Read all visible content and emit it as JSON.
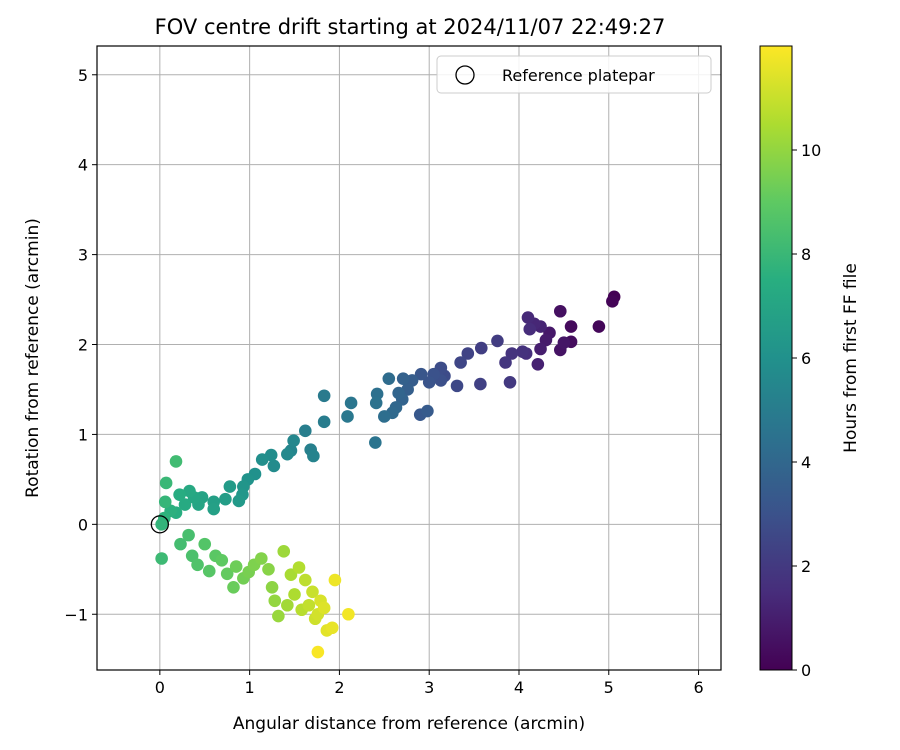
{
  "chart_data": {
    "type": "scatter",
    "title": "FOV centre drift starting at 2024/11/07 22:49:27",
    "xlabel": "Angular distance from reference (arcmin)",
    "ylabel": "Rotation from reference (arcmin)",
    "xlim": [
      -0.7,
      6.25
    ],
    "ylim": [
      -1.62,
      5.32
    ],
    "xticks": [
      "0",
      "1",
      "2",
      "3",
      "4",
      "5",
      "6"
    ],
    "yticks": [
      "−1",
      "0",
      "1",
      "2",
      "3",
      "4",
      "5"
    ],
    "grid": true,
    "legend": {
      "placement": "top-right",
      "entries": [
        {
          "label": "Reference platepar",
          "marker": "open-circle",
          "x": 0,
          "y": 0
        }
      ]
    },
    "colorbar": {
      "label": "Hours from first FF file",
      "range": [
        0,
        12
      ],
      "ticks": [
        "0",
        "2",
        "4",
        "6",
        "8",
        "10"
      ],
      "colormap": "viridis"
    },
    "points": [
      [
        5.06,
        2.53,
        0.0
      ],
      [
        5.04,
        2.48,
        0.1
      ],
      [
        4.89,
        2.2,
        0.2
      ],
      [
        4.58,
        2.2,
        0.3
      ],
      [
        4.58,
        2.03,
        0.4
      ],
      [
        4.46,
        2.37,
        0.5
      ],
      [
        4.46,
        1.94,
        0.6
      ],
      [
        4.5,
        2.02,
        0.7
      ],
      [
        4.34,
        2.13,
        0.8
      ],
      [
        4.3,
        2.05,
        0.9
      ],
      [
        4.24,
        1.95,
        1.0
      ],
      [
        4.21,
        1.78,
        1.1
      ],
      [
        4.24,
        2.2,
        1.2
      ],
      [
        4.17,
        2.23,
        1.3
      ],
      [
        4.1,
        2.3,
        1.4
      ],
      [
        4.12,
        2.17,
        1.5
      ],
      [
        4.08,
        1.9,
        1.6
      ],
      [
        4.04,
        1.92,
        1.7
      ],
      [
        3.92,
        1.9,
        1.8
      ],
      [
        3.85,
        1.8,
        1.9
      ],
      [
        3.9,
        1.58,
        2.0
      ],
      [
        3.76,
        2.04,
        2.1
      ],
      [
        3.58,
        1.96,
        2.2
      ],
      [
        3.57,
        1.56,
        2.3
      ],
      [
        3.43,
        1.9,
        2.4
      ],
      [
        3.35,
        1.8,
        2.5
      ],
      [
        3.31,
        1.54,
        2.6
      ],
      [
        3.17,
        1.65,
        2.7
      ],
      [
        3.13,
        1.74,
        2.8
      ],
      [
        3.13,
        1.6,
        2.9
      ],
      [
        3.05,
        1.67,
        3.0
      ],
      [
        3.0,
        1.58,
        3.1
      ],
      [
        2.91,
        1.67,
        3.2
      ],
      [
        2.9,
        1.22,
        3.3
      ],
      [
        2.98,
        1.26,
        3.4
      ],
      [
        2.81,
        1.6,
        3.5
      ],
      [
        2.76,
        1.5,
        3.6
      ],
      [
        2.71,
        1.62,
        3.7
      ],
      [
        2.7,
        1.39,
        3.8
      ],
      [
        2.66,
        1.46,
        3.9
      ],
      [
        2.63,
        1.3,
        4.0
      ],
      [
        2.59,
        1.24,
        4.1
      ],
      [
        2.55,
        1.62,
        4.2
      ],
      [
        2.5,
        1.2,
        4.3
      ],
      [
        2.42,
        1.45,
        4.4
      ],
      [
        2.41,
        1.35,
        4.5
      ],
      [
        2.4,
        0.91,
        4.6
      ],
      [
        2.13,
        1.35,
        4.7
      ],
      [
        2.09,
        1.2,
        4.8
      ],
      [
        1.83,
        1.43,
        4.9
      ],
      [
        1.83,
        1.14,
        5.0
      ],
      [
        1.62,
        1.04,
        5.1
      ],
      [
        1.68,
        0.83,
        5.2
      ],
      [
        1.71,
        0.76,
        5.3
      ],
      [
        1.46,
        0.82,
        5.4
      ],
      [
        1.49,
        0.93,
        5.5
      ],
      [
        1.42,
        0.78,
        5.6
      ],
      [
        1.27,
        0.65,
        5.7
      ],
      [
        1.24,
        0.77,
        5.8
      ],
      [
        1.14,
        0.72,
        5.9
      ],
      [
        1.06,
        0.56,
        6.0
      ],
      [
        0.98,
        0.5,
        6.1
      ],
      [
        0.93,
        0.42,
        6.2
      ],
      [
        0.92,
        0.33,
        6.3
      ],
      [
        0.88,
        0.26,
        6.4
      ],
      [
        0.78,
        0.42,
        6.5
      ],
      [
        0.73,
        0.28,
        6.6
      ],
      [
        0.6,
        0.25,
        6.7
      ],
      [
        0.6,
        0.17,
        6.8
      ],
      [
        0.47,
        0.3,
        6.9
      ],
      [
        0.43,
        0.22,
        7.0
      ],
      [
        0.38,
        0.3,
        7.1
      ],
      [
        0.33,
        0.37,
        7.2
      ],
      [
        0.28,
        0.22,
        7.3
      ],
      [
        0.22,
        0.33,
        7.4
      ],
      [
        0.18,
        0.13,
        7.5
      ],
      [
        0.12,
        0.15,
        7.6
      ],
      [
        0.05,
        0.07,
        7.7
      ],
      [
        0.02,
        0.0,
        7.8
      ],
      [
        0.06,
        0.25,
        7.9
      ],
      [
        0.07,
        0.46,
        8.0
      ],
      [
        0.02,
        -0.38,
        8.1
      ],
      [
        0.18,
        0.7,
        8.2
      ],
      [
        0.23,
        -0.22,
        8.3
      ],
      [
        0.32,
        -0.12,
        8.4
      ],
      [
        0.36,
        -0.35,
        8.5
      ],
      [
        0.42,
        -0.45,
        8.6
      ],
      [
        0.5,
        -0.22,
        8.7
      ],
      [
        0.55,
        -0.52,
        8.8
      ],
      [
        0.62,
        -0.35,
        8.9
      ],
      [
        0.69,
        -0.4,
        9.0
      ],
      [
        0.75,
        -0.55,
        9.1
      ],
      [
        0.82,
        -0.7,
        9.2
      ],
      [
        0.85,
        -0.47,
        9.3
      ],
      [
        0.93,
        -0.6,
        9.4
      ],
      [
        0.99,
        -0.53,
        9.5
      ],
      [
        1.05,
        -0.45,
        9.6
      ],
      [
        1.13,
        -0.38,
        9.7
      ],
      [
        1.21,
        -0.5,
        9.8
      ],
      [
        1.25,
        -0.7,
        9.9
      ],
      [
        1.28,
        -0.85,
        10.0
      ],
      [
        1.32,
        -1.02,
        10.1
      ],
      [
        1.38,
        -0.3,
        10.2
      ],
      [
        1.42,
        -0.9,
        10.3
      ],
      [
        1.46,
        -0.56,
        10.4
      ],
      [
        1.5,
        -0.78,
        10.5
      ],
      [
        1.55,
        -0.48,
        10.6
      ],
      [
        1.58,
        -0.95,
        10.7
      ],
      [
        1.62,
        -0.62,
        10.8
      ],
      [
        1.66,
        -0.9,
        10.9
      ],
      [
        1.7,
        -0.75,
        11.0
      ],
      [
        1.73,
        -1.05,
        11.1
      ],
      [
        1.76,
        -1.0,
        11.2
      ],
      [
        1.79,
        -0.85,
        11.3
      ],
      [
        1.83,
        -0.93,
        11.4
      ],
      [
        1.86,
        -1.18,
        11.5
      ],
      [
        1.92,
        -1.15,
        11.6
      ],
      [
        1.95,
        -0.62,
        11.7
      ],
      [
        2.1,
        -1.0,
        11.8
      ],
      [
        1.76,
        -1.42,
        11.9
      ]
    ]
  }
}
